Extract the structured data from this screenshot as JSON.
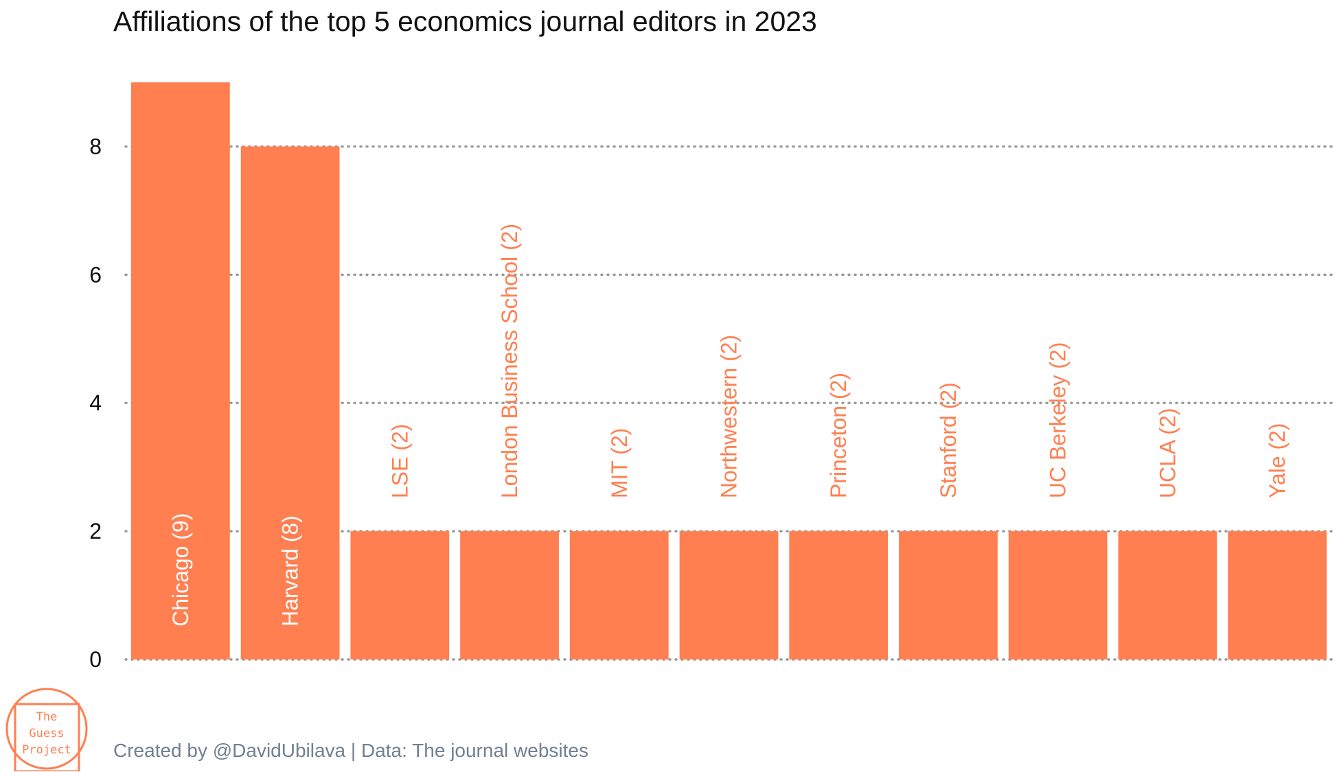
{
  "chart_data": {
    "type": "bar",
    "title": "Affiliations of the top 5 economics journal editors in 2023",
    "categories": [
      "Chicago",
      "Harvard",
      "LSE",
      "London Business School",
      "MIT",
      "Northwestern",
      "Princeton",
      "Stanford",
      "UC Berkeley",
      "UCLA",
      "Yale"
    ],
    "values": [
      9,
      8,
      2,
      2,
      2,
      2,
      2,
      2,
      2,
      2,
      2
    ],
    "data_labels": [
      "Chicago (9)",
      "Harvard (8)",
      "LSE (2)",
      "London Business School (2)",
      "MIT (2)",
      "Northwestern (2)",
      "Princeton (2)",
      "Stanford (2)",
      "UC Berkeley (2)",
      "UCLA (2)",
      "Yale (2)"
    ],
    "xlabel": "",
    "ylabel": "",
    "ylim": [
      0,
      9
    ],
    "yticks": [
      0,
      2,
      4,
      6,
      8
    ],
    "grid": "horizontal dotted",
    "legend": "none",
    "bar_color": "#FF7F50",
    "grid_color": "#999999"
  },
  "caption": "Created by @DavidUbilava | Data: The journal websites",
  "logo": {
    "line1": "The",
    "line2": "Guess",
    "line3": "Project",
    "color": "#FF7F50"
  }
}
